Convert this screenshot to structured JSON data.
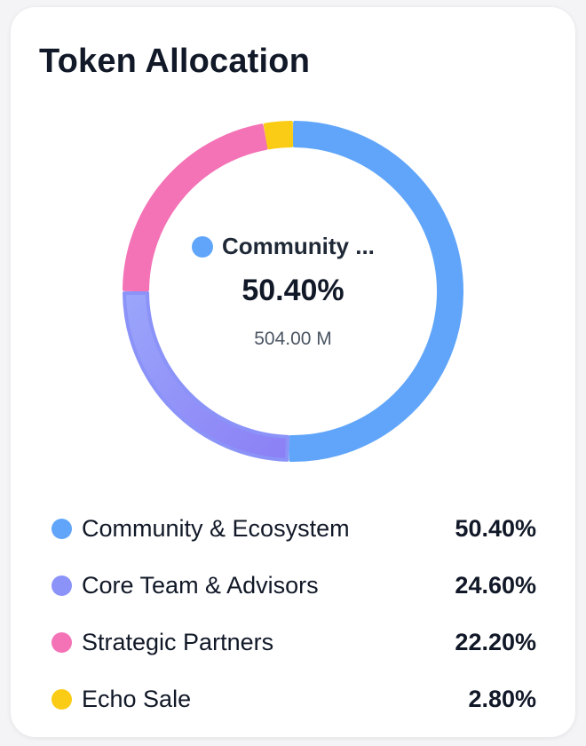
{
  "card": {
    "title": "Token Allocation"
  },
  "center": {
    "label": "Community ...",
    "percent": "50.40%",
    "amount": "504.00 M",
    "dot_color": "#60a5fa"
  },
  "chart_data": {
    "type": "pie",
    "title": "Token Allocation",
    "donut": true,
    "series": [
      {
        "name": "Community & Ecosystem",
        "value": 50.4,
        "label": "50.40%",
        "color": "#60a5fa"
      },
      {
        "name": "Core Team & Advisors",
        "value": 24.6,
        "label": "24.60%",
        "color": "#8b93f8"
      },
      {
        "name": "Strategic Partners",
        "value": 22.2,
        "label": "22.20%",
        "color": "#f472b6"
      },
      {
        "name": "Echo Sale",
        "value": 2.8,
        "label": "2.80%",
        "color": "#facc15"
      }
    ]
  }
}
